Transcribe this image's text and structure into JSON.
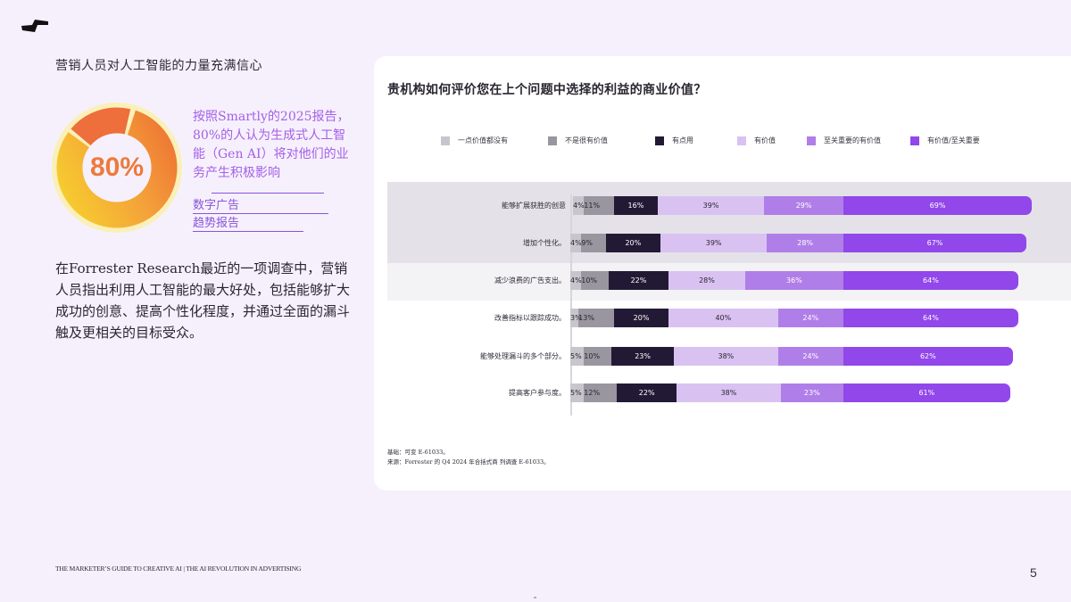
{
  "page": {
    "logo_icon": "lightning-bolt-logo",
    "left_title": "营销人员对人工智能的力量充满信心",
    "stat": {
      "value": "80%",
      "percent": 80,
      "text": "按照Smartly的2025报告，80%的人认为生成式人工智能（Gen AI）将对他们的业务产生积极影响",
      "links": [
        "数字广告",
        "趋势报告"
      ]
    },
    "body_text": "在Forrester Research最近的一项调查中，营销人员指出利用人工智能的最大好处，包括能够扩大成功的创意、提高个性化程度，并通过全面的漏斗触及更相关的目标受众。",
    "footer": "THE MARKETER’S GUIDE TO CREATIVE AI | THE AI REVOLUTION IN ADVERTISING",
    "page_number": "5",
    "colors": {
      "background": "#f6f0fd",
      "accent_purple": "#a460e6",
      "donut_orange": "#ec7a3c",
      "donut_yellow": "#f6c12a",
      "donut_red": "#ee6e3c",
      "donut_ring": "#faf0b8"
    }
  },
  "chart_data": {
    "type": "bar",
    "orientation": "horizontal",
    "stacked": true,
    "title": "贵机构如何评价您在上个问题中选择的利益的商业价值？",
    "legend_position": "top",
    "legend": [
      {
        "label": "一点价值都没有",
        "color": "#c8c6cc"
      },
      {
        "label": "不是很有价值",
        "color": "#9a96a0"
      },
      {
        "label": "有点用",
        "color": "#221a35"
      },
      {
        "label": "有价值",
        "color": "#d9c2f2"
      },
      {
        "label": "至关重要的有价值",
        "color": "#b07ee8"
      },
      {
        "label": "有价值/至关重要",
        "color": "#9147ea"
      }
    ],
    "categories": [
      "能够扩展获胜的创意",
      "增加个性化。",
      "减少浪费的广告支出。",
      "改善指标以跟踪成功。",
      "能够处理漏斗的多个部分。",
      "提高客户参与度。"
    ],
    "series": [
      {
        "name": "一点价值都没有",
        "values": [
          4,
          4,
          4,
          3,
          5,
          5
        ]
      },
      {
        "name": "不是很有价值",
        "values": [
          11,
          9,
          10,
          13,
          10,
          12
        ]
      },
      {
        "name": "有点用",
        "values": [
          16,
          20,
          22,
          20,
          23,
          22
        ]
      },
      {
        "name": "有价值",
        "values": [
          39,
          39,
          28,
          40,
          38,
          38
        ]
      },
      {
        "name": "至关重要的有价值",
        "values": [
          29,
          28,
          36,
          24,
          24,
          23
        ]
      },
      {
        "name": "有价值/至关重要",
        "values": [
          69,
          67,
          64,
          64,
          62,
          61
        ]
      }
    ],
    "footnotes": [
      "基础：可变 E-61033。",
      "来源：Forrester 的 Q4 2024 年合括式商 列调查 E-61033。"
    ],
    "grid": false,
    "xlabel": "",
    "ylabel": ""
  }
}
